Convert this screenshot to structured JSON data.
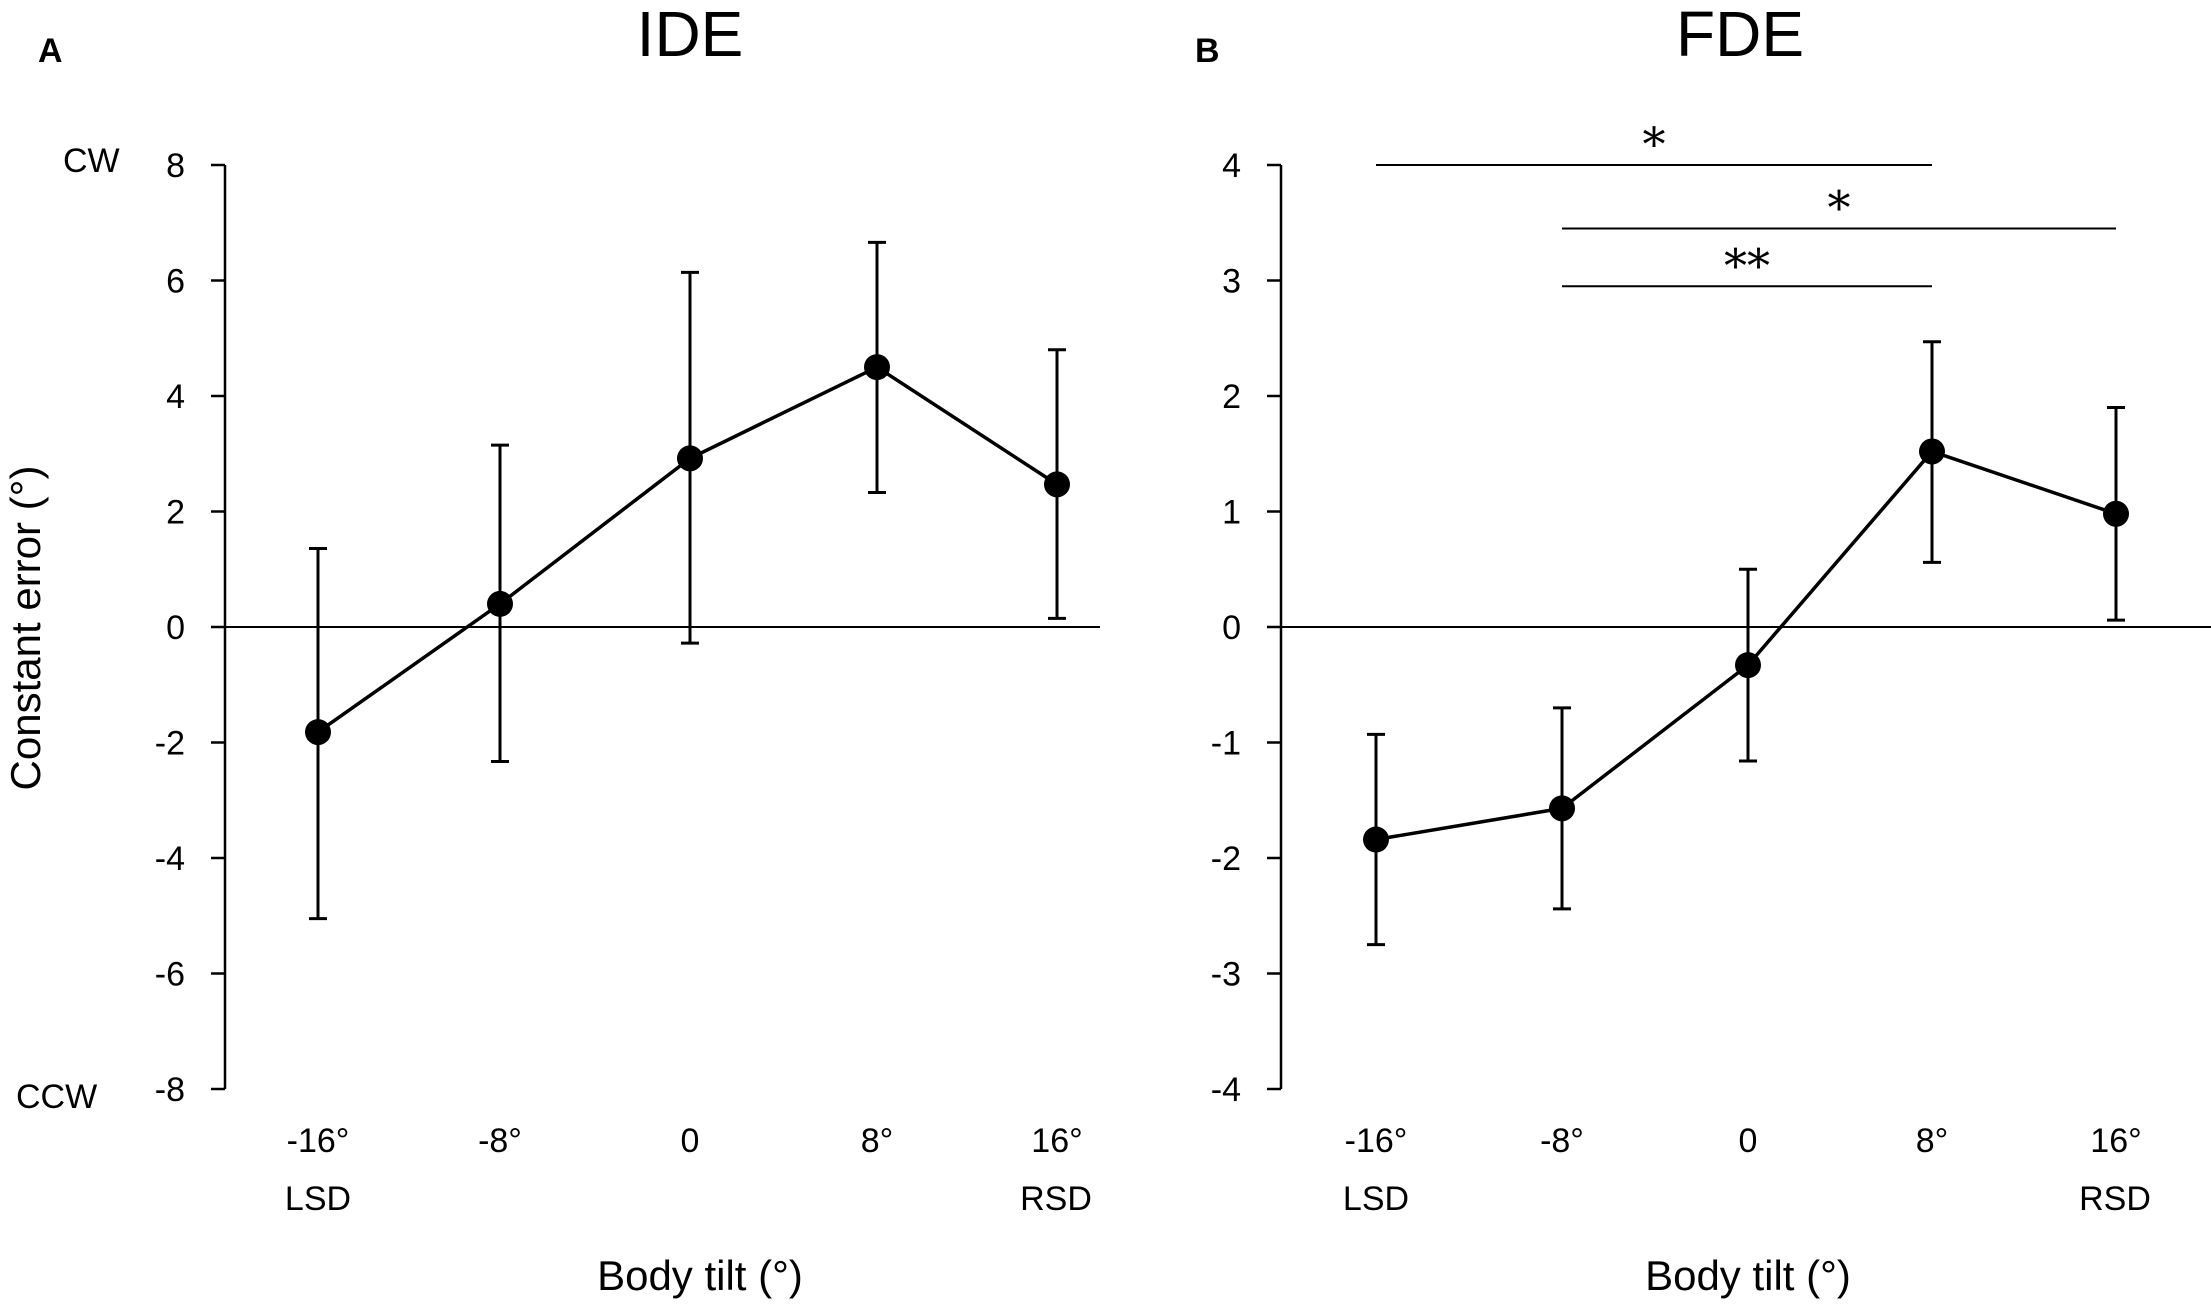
{
  "figure": {
    "panels": [
      {
        "letter": "A",
        "title": "IDE",
        "ylabel": "Constant error (°)",
        "ylabel_top": "CW",
        "ylabel_bottom": "CCW",
        "xlabel": "Body tilt (°)",
        "x_side_left": "LSD",
        "x_side_right": "RSD"
      },
      {
        "letter": "B",
        "title": "FDE",
        "xlabel": "Body tilt (°)",
        "x_side_left": "LSD",
        "x_side_right": "RSD"
      }
    ]
  },
  "chart_data": [
    {
      "type": "line",
      "title": "IDE",
      "xlabel": "Body tilt (°)",
      "ylabel": "Constant error (°)",
      "categories": [
        "-16°",
        "-8°",
        "0",
        "8°",
        "16°"
      ],
      "ylim": [
        -8,
        8
      ],
      "yticks": [
        8,
        6,
        4,
        2,
        0,
        -2,
        -4,
        -6,
        -8
      ],
      "ytick_labels": [
        "8",
        "6",
        "4",
        "2",
        "0",
        "-2",
        "-4",
        "-6",
        "-8"
      ],
      "series": [
        {
          "name": "IDE",
          "values": [
            -1.82,
            0.4,
            2.92,
            4.5,
            2.47
          ],
          "err_upper": [
            1.36,
            3.15,
            6.14,
            6.66,
            4.8
          ],
          "err_lower": [
            -5.05,
            -2.33,
            -0.28,
            2.33,
            0.15
          ]
        }
      ],
      "significance": []
    },
    {
      "type": "line",
      "title": "FDE",
      "xlabel": "Body tilt (°)",
      "ylabel": "Constant error (°)",
      "categories": [
        "-16°",
        "-8°",
        "0",
        "8°",
        "16°"
      ],
      "ylim": [
        -4,
        4
      ],
      "yticks": [
        4,
        3,
        2,
        1,
        0,
        -1,
        -2,
        -3,
        -4
      ],
      "ytick_labels": [
        "4",
        "3",
        "2",
        "1",
        "0",
        "-1",
        "-2",
        "-3",
        "-4"
      ],
      "series": [
        {
          "name": "FDE",
          "values": [
            -1.84,
            -1.57,
            -0.33,
            1.52,
            0.98
          ],
          "err_upper": [
            -0.93,
            -0.7,
            0.5,
            2.47,
            1.9
          ],
          "err_lower": [
            -2.75,
            -2.44,
            -1.16,
            0.56,
            0.06
          ]
        }
      ],
      "significance": [
        {
          "from": 0,
          "to": 3,
          "label": "*",
          "y": 4.0
        },
        {
          "from": 1,
          "to": 4,
          "label": "*",
          "y": 3.45
        },
        {
          "from": 1,
          "to": 3,
          "label": "**",
          "y": 2.95
        }
      ]
    }
  ]
}
